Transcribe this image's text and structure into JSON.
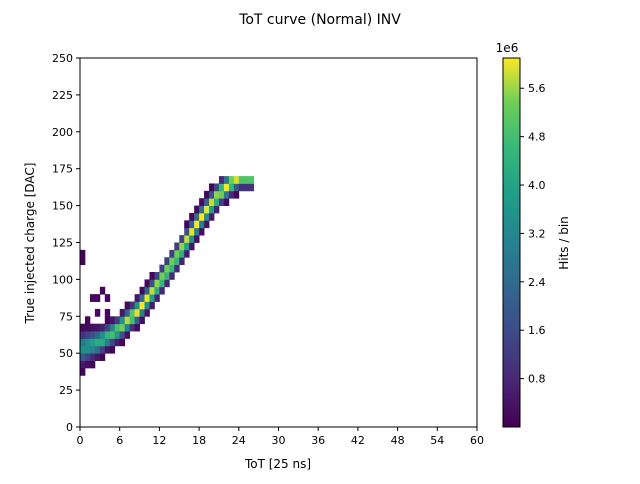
{
  "chart_data": {
    "type": "heatmap",
    "title": "ToT curve (Normal) INV",
    "xlabel": "ToT [25 ns]",
    "ylabel": "True injected charge [DAC]",
    "xlim": [
      0,
      60
    ],
    "ylim": [
      0,
      250
    ],
    "xticks": [
      0,
      6,
      12,
      18,
      24,
      30,
      36,
      42,
      48,
      54,
      60
    ],
    "yticks": [
      0,
      25,
      50,
      75,
      100,
      125,
      150,
      175,
      200,
      225,
      250
    ],
    "colorbar": {
      "label": "Hits / bin",
      "scale_label": "1e6",
      "ticks": [
        0.8,
        1.6,
        2.4,
        3.2,
        4.0,
        4.8,
        5.6
      ],
      "tick_labels": [
        "0.8",
        "1.6",
        "2.4",
        "3.2",
        "4.0",
        "4.8",
        "5.6"
      ],
      "range": [
        0.0,
        6.1
      ],
      "colormap": "viridis"
    },
    "bin_width_x": 0.75,
    "bin_width_y": 5,
    "ridge": {
      "description_points_x": [
        0,
        3,
        6,
        9,
        12,
        15,
        18,
        21,
        24
      ],
      "description_points_y": [
        53,
        58,
        67,
        80,
        98,
        118,
        140,
        158,
        170
      ],
      "peak_value_1e6": 6.1
    },
    "grid": false
  }
}
